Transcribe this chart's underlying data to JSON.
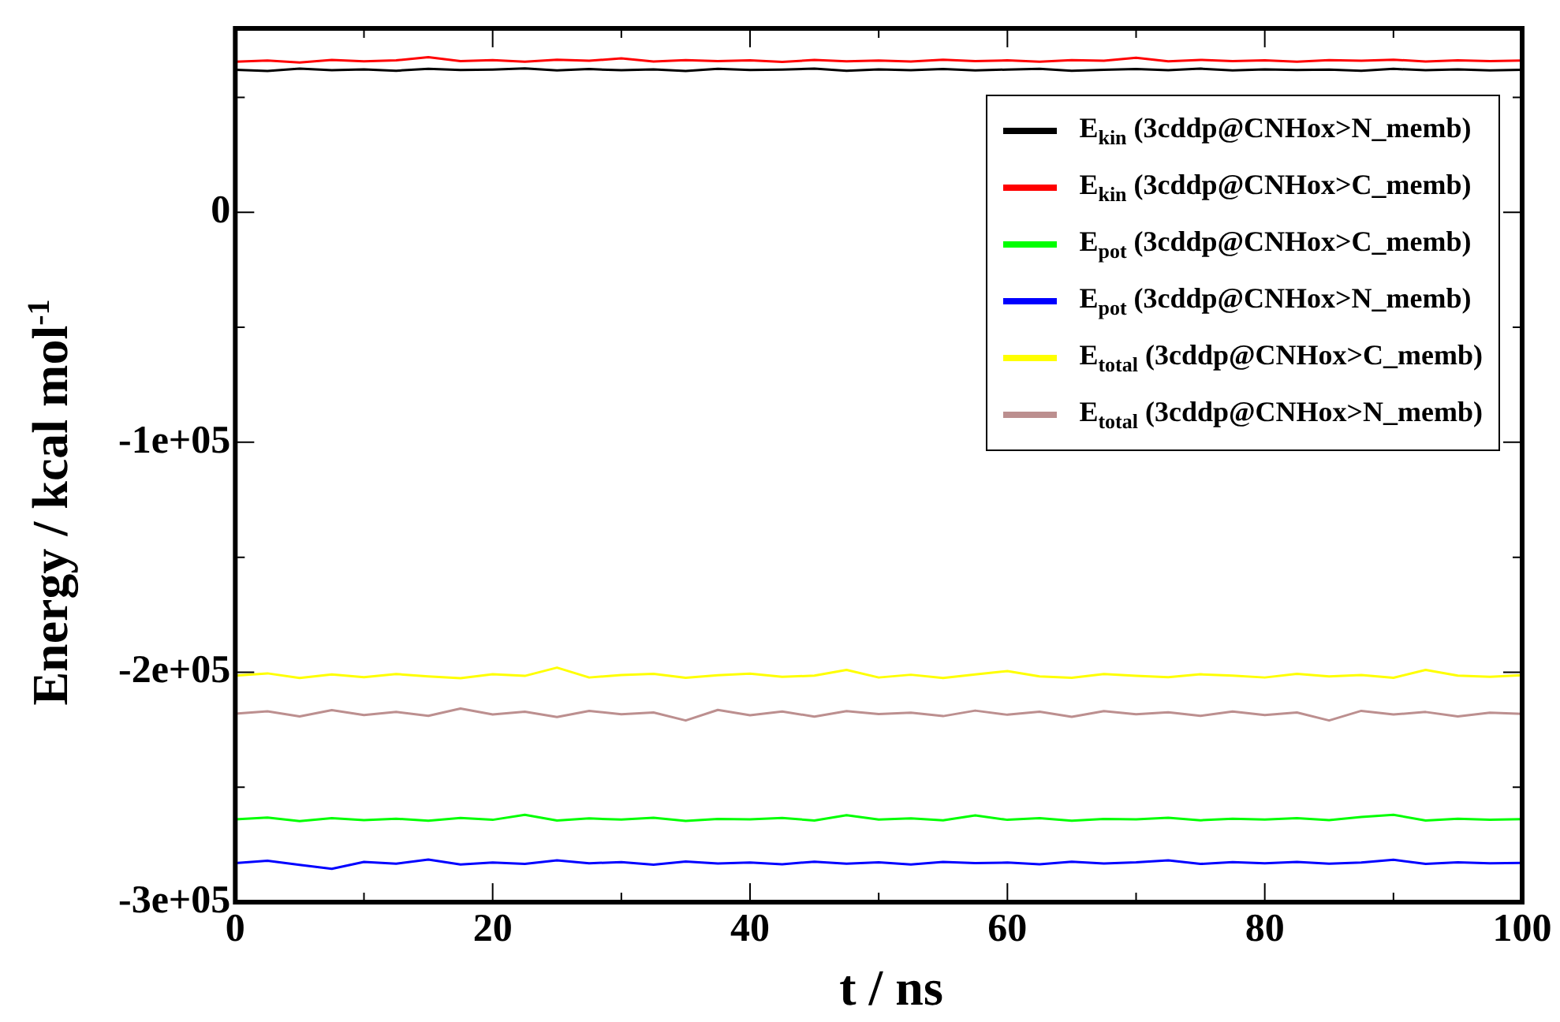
{
  "chart_data": {
    "type": "line",
    "xlabel": "t / ns",
    "ylabel": "Energy / kcal mol$^{-1}$",
    "x": [
      0,
      2.5,
      5,
      7.5,
      10,
      12.5,
      15,
      17.5,
      20,
      22.5,
      25,
      27.5,
      30,
      32.5,
      35,
      37.5,
      40,
      42.5,
      45,
      47.5,
      50,
      52.5,
      55,
      57.5,
      60,
      62.5,
      65,
      67.5,
      70,
      72.5,
      75,
      77.5,
      80,
      82.5,
      85,
      87.5,
      90,
      92.5,
      95,
      97.5,
      100
    ],
    "xlim": [
      0,
      100
    ],
    "xticks": [
      0,
      {
        "value": 10,
        "label": null
      },
      20,
      {
        "value": 30,
        "label": null
      },
      40,
      {
        "value": 50,
        "label": null
      },
      60,
      {
        "value": 70,
        "label": null
      },
      80,
      {
        "value": 90,
        "label": null
      },
      100
    ],
    "ylim": [
      -300000,
      80000
    ],
    "yticks": [
      {
        "value": -300000,
        "label": "-3e+05"
      },
      {
        "value": -250000,
        "label": null
      },
      {
        "value": -200000,
        "label": "-2e+05"
      },
      {
        "value": -150000,
        "label": null
      },
      {
        "value": -100000,
        "label": "-1e+05"
      },
      {
        "value": -50000,
        "label": null
      },
      0,
      {
        "value": 50000,
        "label": null
      }
    ],
    "grid": false,
    "legend": "top right",
    "marker": "none",
    "line_style": "solid",
    "series": [
      {
        "name": "E$_{kin}$ (3cddp@CNHox>N_memb)",
        "color": "#000000",
        "values": [
          62000,
          61500,
          62500,
          61800,
          62200,
          61600,
          62400,
          61900,
          62100,
          62600,
          61700,
          62300,
          61800,
          62200,
          61500,
          62400,
          61900,
          62100,
          62500,
          61600,
          62200,
          61800,
          62300,
          61700,
          62100,
          62400,
          61600,
          62000,
          62300,
          61800,
          62500,
          61700,
          62200,
          61900,
          62100,
          61600,
          62400,
          61800,
          62200,
          61700,
          62000
        ]
      },
      {
        "name": "E$_{kin}$ (3cddp@CNHox>C_memb)",
        "color": "#ff0000",
        "values": [
          65500,
          66000,
          65200,
          66300,
          65700,
          66100,
          67500,
          65800,
          66200,
          65500,
          66400,
          65900,
          67000,
          65600,
          66200,
          65800,
          66100,
          65400,
          66300,
          65700,
          66000,
          65600,
          66400,
          65800,
          66100,
          65500,
          66200,
          65900,
          67200,
          65700,
          66300,
          65800,
          66100,
          65500,
          66200,
          65900,
          66400,
          65600,
          66100,
          65800,
          66000
        ]
      },
      {
        "name": "E$_{pot}$ (3cddp@CNHox>C_memb)",
        "color": "#00ff00",
        "values": [
          -264000,
          -263200,
          -264800,
          -263500,
          -264300,
          -263700,
          -264600,
          -263400,
          -264200,
          -262000,
          -264500,
          -263600,
          -264100,
          -263300,
          -264700,
          -263800,
          -264000,
          -263400,
          -264500,
          -262200,
          -264100,
          -263600,
          -264400,
          -262300,
          -264200,
          -263500,
          -264600,
          -263800,
          -264000,
          -263300,
          -264400,
          -263700,
          -264100,
          -263500,
          -264300,
          -263000,
          -262000,
          -264500,
          -263700,
          -264200,
          -263900
        ]
      },
      {
        "name": "E$_{pot}$ (3cddp@CNHox>N_memb)",
        "color": "#0000ff",
        "values": [
          -283000,
          -282000,
          -283800,
          -285500,
          -282500,
          -283300,
          -281500,
          -283600,
          -282800,
          -283400,
          -281800,
          -283100,
          -282600,
          -283700,
          -282300,
          -283200,
          -282800,
          -283500,
          -282400,
          -283300,
          -282700,
          -283600,
          -282500,
          -283000,
          -282800,
          -283500,
          -282400,
          -283200,
          -282700,
          -281800,
          -283400,
          -282600,
          -283100,
          -282500,
          -283300,
          -282800,
          -281600,
          -283400,
          -282700,
          -283100,
          -282900
        ]
      },
      {
        "name": "E$_{total}$ (3cddp@CNHox>C_memb)",
        "color": "#ffff00",
        "values": [
          -201500,
          -200500,
          -202500,
          -201000,
          -202200,
          -200800,
          -201800,
          -202600,
          -200900,
          -201600,
          -198000,
          -202300,
          -201200,
          -200700,
          -202400,
          -201300,
          -200600,
          -202000,
          -201500,
          -199000,
          -202300,
          -201100,
          -202500,
          -201000,
          -199500,
          -201800,
          -202400,
          -200800,
          -201600,
          -202200,
          -200900,
          -201500,
          -202300,
          -200700,
          -201800,
          -201200,
          -202400,
          -199000,
          -201500,
          -202000,
          -201300
        ]
      },
      {
        "name": "E$_{total}$ (3cddp@CNHox>N_memb)",
        "color": "#bc8f8f",
        "values": [
          -218000,
          -217000,
          -219200,
          -216500,
          -218600,
          -217300,
          -219000,
          -215800,
          -218400,
          -217200,
          -219500,
          -216800,
          -218300,
          -217500,
          -221000,
          -216400,
          -218700,
          -217100,
          -219300,
          -216900,
          -218200,
          -217600,
          -219100,
          -216700,
          -218500,
          -217200,
          -219400,
          -216900,
          -218300,
          -217400,
          -219000,
          -217100,
          -218600,
          -217500,
          -221000,
          -216800,
          -218400,
          -217300,
          -219200,
          -217600,
          -218100
        ]
      }
    ]
  }
}
